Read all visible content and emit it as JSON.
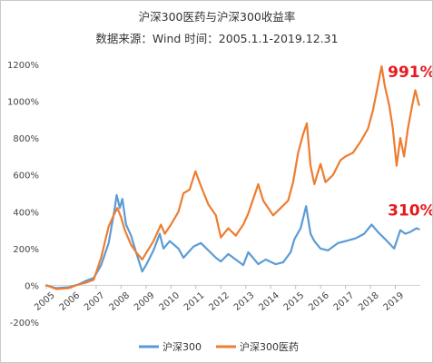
{
  "chart_data": {
    "type": "line",
    "title": "沪深300医药与沪深300收益率",
    "subtitle": "数据来源：Wind 时间：2005.1.1-2019.12.31",
    "x_tick_labels": [
      "2005",
      "2006",
      "2007",
      "2008",
      "2009",
      "2010",
      "2011",
      "2012",
      "2013",
      "2014",
      "2015",
      "2016",
      "2017",
      "2018",
      "2019"
    ],
    "y_tick_labels": [
      "-200%",
      "0%",
      "200%",
      "400%",
      "600%",
      "800%",
      "1000%",
      "1200%"
    ],
    "ylim": [
      -200,
      1200
    ],
    "xlim": [
      2005.0,
      2020.0
    ],
    "grid": false,
    "legend_position": "bottom",
    "series": [
      {
        "name": "沪深300",
        "color": "#5b9bd5",
        "points": [
          [
            2005.0,
            0
          ],
          [
            2005.4,
            -15
          ],
          [
            2005.9,
            -10
          ],
          [
            2006.3,
            5
          ],
          [
            2006.6,
            25
          ],
          [
            2006.9,
            40
          ],
          [
            2007.2,
            110
          ],
          [
            2007.5,
            230
          ],
          [
            2007.75,
            420
          ],
          [
            2007.82,
            490
          ],
          [
            2007.95,
            420
          ],
          [
            2008.05,
            470
          ],
          [
            2008.2,
            330
          ],
          [
            2008.4,
            270
          ],
          [
            2008.6,
            180
          ],
          [
            2008.85,
            75
          ],
          [
            2009.0,
            110
          ],
          [
            2009.3,
            190
          ],
          [
            2009.55,
            280
          ],
          [
            2009.7,
            200
          ],
          [
            2009.95,
            240
          ],
          [
            2010.3,
            200
          ],
          [
            2010.5,
            150
          ],
          [
            2010.9,
            210
          ],
          [
            2011.2,
            230
          ],
          [
            2011.5,
            190
          ],
          [
            2011.8,
            150
          ],
          [
            2012.0,
            130
          ],
          [
            2012.3,
            170
          ],
          [
            2012.6,
            140
          ],
          [
            2012.9,
            110
          ],
          [
            2013.1,
            180
          ],
          [
            2013.5,
            115
          ],
          [
            2013.8,
            140
          ],
          [
            2014.2,
            115
          ],
          [
            2014.5,
            125
          ],
          [
            2014.8,
            180
          ],
          [
            2014.95,
            250
          ],
          [
            2015.2,
            310
          ],
          [
            2015.42,
            430
          ],
          [
            2015.6,
            280
          ],
          [
            2015.75,
            240
          ],
          [
            2016.0,
            200
          ],
          [
            2016.3,
            190
          ],
          [
            2016.7,
            230
          ],
          [
            2017.0,
            240
          ],
          [
            2017.4,
            255
          ],
          [
            2017.75,
            280
          ],
          [
            2018.05,
            330
          ],
          [
            2018.3,
            290
          ],
          [
            2018.6,
            250
          ],
          [
            2018.95,
            200
          ],
          [
            2019.2,
            300
          ],
          [
            2019.4,
            280
          ],
          [
            2019.6,
            290
          ],
          [
            2019.85,
            310
          ],
          [
            2019.95,
            305
          ]
        ]
      },
      {
        "name": "沪深300医药",
        "color": "#ed7d31",
        "points": [
          [
            2005.0,
            0
          ],
          [
            2005.4,
            -20
          ],
          [
            2005.9,
            -15
          ],
          [
            2006.3,
            5
          ],
          [
            2006.6,
            15
          ],
          [
            2006.9,
            30
          ],
          [
            2007.2,
            150
          ],
          [
            2007.5,
            320
          ],
          [
            2007.7,
            380
          ],
          [
            2007.85,
            420
          ],
          [
            2008.0,
            370
          ],
          [
            2008.15,
            300
          ],
          [
            2008.4,
            220
          ],
          [
            2008.6,
            180
          ],
          [
            2008.85,
            140
          ],
          [
            2009.0,
            175
          ],
          [
            2009.3,
            240
          ],
          [
            2009.6,
            330
          ],
          [
            2009.75,
            280
          ],
          [
            2010.0,
            330
          ],
          [
            2010.3,
            400
          ],
          [
            2010.5,
            500
          ],
          [
            2010.75,
            520
          ],
          [
            2010.98,
            620
          ],
          [
            2011.2,
            540
          ],
          [
            2011.5,
            440
          ],
          [
            2011.8,
            380
          ],
          [
            2012.0,
            260
          ],
          [
            2012.3,
            310
          ],
          [
            2012.6,
            270
          ],
          [
            2012.9,
            330
          ],
          [
            2013.1,
            390
          ],
          [
            2013.3,
            470
          ],
          [
            2013.5,
            550
          ],
          [
            2013.7,
            460
          ],
          [
            2013.9,
            420
          ],
          [
            2014.1,
            380
          ],
          [
            2014.4,
            420
          ],
          [
            2014.7,
            460
          ],
          [
            2014.9,
            560
          ],
          [
            2015.1,
            720
          ],
          [
            2015.3,
            820
          ],
          [
            2015.45,
            880
          ],
          [
            2015.6,
            650
          ],
          [
            2015.75,
            550
          ],
          [
            2016.0,
            660
          ],
          [
            2016.2,
            560
          ],
          [
            2016.5,
            600
          ],
          [
            2016.8,
            680
          ],
          [
            2017.0,
            700
          ],
          [
            2017.3,
            720
          ],
          [
            2017.6,
            780
          ],
          [
            2017.9,
            850
          ],
          [
            2018.1,
            950
          ],
          [
            2018.25,
            1050
          ],
          [
            2018.45,
            1190
          ],
          [
            2018.58,
            1080
          ],
          [
            2018.75,
            980
          ],
          [
            2018.9,
            850
          ],
          [
            2019.05,
            650
          ],
          [
            2019.2,
            800
          ],
          [
            2019.35,
            700
          ],
          [
            2019.5,
            850
          ],
          [
            2019.65,
            960
          ],
          [
            2019.8,
            1060
          ],
          [
            2019.95,
            980
          ]
        ]
      }
    ],
    "annotations": [
      {
        "text": "991%",
        "x": 2019.65,
        "y": 1130
      },
      {
        "text": "310%",
        "x": 2019.65,
        "y": 380
      }
    ]
  }
}
